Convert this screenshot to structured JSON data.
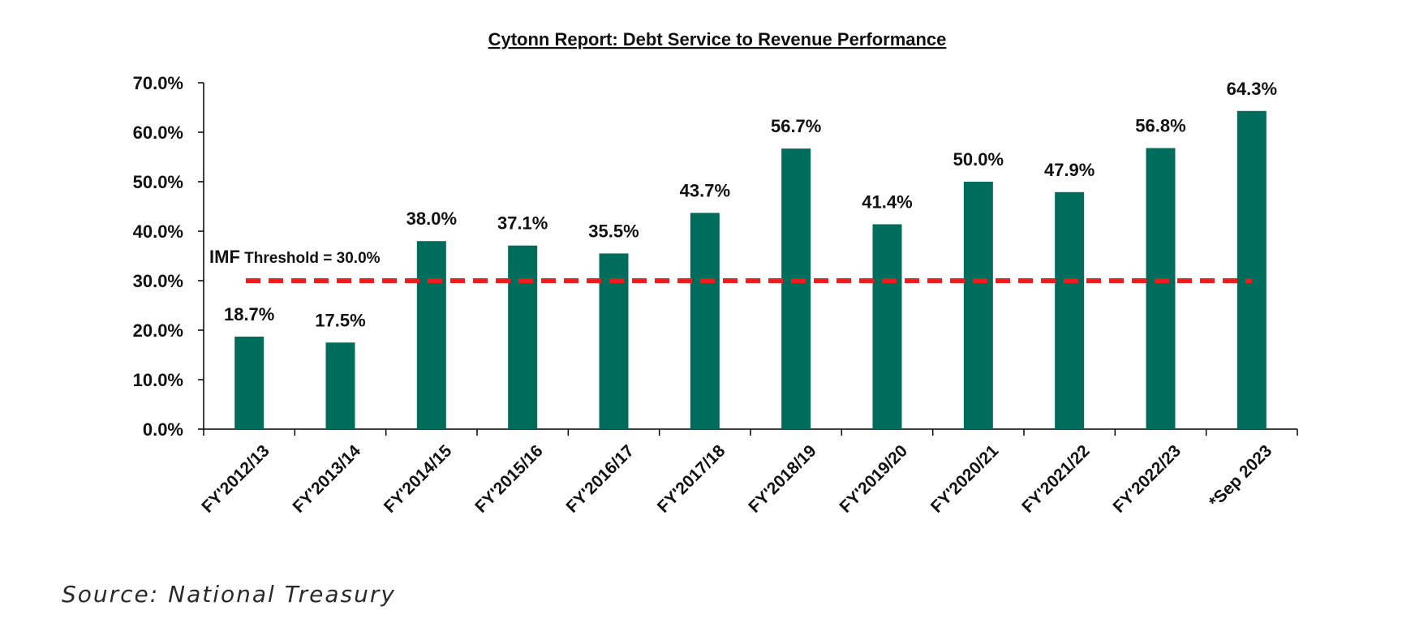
{
  "chart_data": {
    "type": "bar",
    "title": "Cytonn Report: Debt Service to Revenue Performance",
    "categories": [
      "FY'2012/13",
      "FY'2013/14",
      "FY'2014/15",
      "FY'2015/16",
      "FY'2016/17",
      "FY'2017/18",
      "FY'2018/19",
      "FY'2019/20",
      "FY'2020/21",
      "FY'2021/22",
      "FY'2022/23",
      "*Sep 2023"
    ],
    "values": [
      18.7,
      17.5,
      38.0,
      37.1,
      35.5,
      43.7,
      56.7,
      41.4,
      50.0,
      47.9,
      56.8,
      64.3
    ],
    "data_labels": [
      "18.7%",
      "17.5%",
      "38.0%",
      "37.1%",
      "35.5%",
      "43.7%",
      "56.7%",
      "41.4%",
      "50.0%",
      "47.9%",
      "56.8%",
      "64.3%"
    ],
    "ylim": [
      0,
      70
    ],
    "yticks": [
      0,
      10,
      20,
      30,
      40,
      50,
      60,
      70
    ],
    "ytick_labels": [
      "0.0%",
      "10.0%",
      "20.0%",
      "30.0%",
      "40.0%",
      "50.0%",
      "60.0%",
      "70.0%"
    ],
    "xlabel": "",
    "ylabel": "",
    "grid": false,
    "legend": "none",
    "reference_line": {
      "value": 30.0,
      "label_prefix": "IMF",
      "label_suffix": " Threshold = 30.0%",
      "style": "dashed",
      "color": "#ee1c1c"
    },
    "bar_color": "#006c5b",
    "axis_color": "#000000"
  },
  "footer": {
    "source": "Source: National Treasury"
  }
}
